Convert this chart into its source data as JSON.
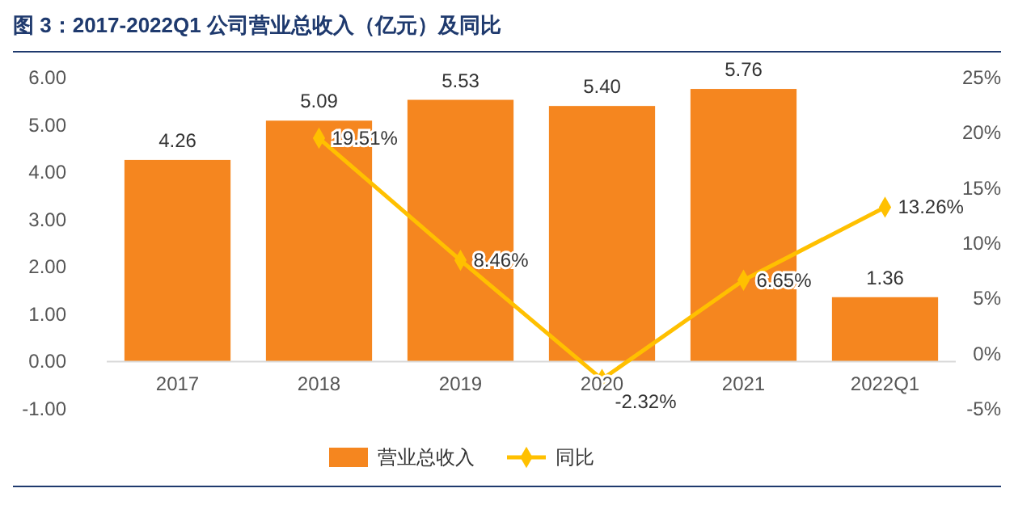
{
  "chart_data": {
    "type": "bar",
    "title": "图 3：2017-2022Q1 公司营业总收入（亿元）及同比",
    "categories": [
      "2017",
      "2018",
      "2019",
      "2020",
      "2021",
      "2022Q1"
    ],
    "series": [
      {
        "name": "营业总收入",
        "color": "#f5861f",
        "values": [
          4.26,
          5.09,
          5.53,
          5.4,
          5.76,
          1.36
        ],
        "value_labels": [
          "4.26",
          "5.09",
          "5.53",
          "5.40",
          "5.76",
          "1.36"
        ]
      },
      {
        "name": "同比",
        "type": "line",
        "axis": "y2",
        "color": "#ffc000",
        "marker": "diamond",
        "values": [
          null,
          19.51,
          8.46,
          -2.32,
          6.65,
          13.26
        ],
        "value_labels": [
          null,
          "19.51%",
          "8.46%",
          "-2.32%",
          "6.65%",
          "13.26%"
        ]
      }
    ],
    "ylim": [
      -1,
      6
    ],
    "yticks": [
      {
        "value": -1,
        "label": "-1.00"
      },
      {
        "value": 0,
        "label": "0.00"
      },
      {
        "value": 1,
        "label": "1.00"
      },
      {
        "value": 2,
        "label": "2.00"
      },
      {
        "value": 3,
        "label": "3.00"
      },
      {
        "value": 4,
        "label": "4.00"
      },
      {
        "value": 5,
        "label": "5.00"
      },
      {
        "value": 6,
        "label": "6.00"
      }
    ],
    "y2lim": [
      -5,
      25
    ],
    "y2ticks": [
      {
        "value": -5,
        "label": "-5%"
      },
      {
        "value": 0,
        "label": "0%"
      },
      {
        "value": 5,
        "label": "5%"
      },
      {
        "value": 10,
        "label": "10%"
      },
      {
        "value": 15,
        "label": "15%"
      },
      {
        "value": 20,
        "label": "20%"
      },
      {
        "value": 25,
        "label": "25%"
      }
    ],
    "legend": "bottom",
    "grid": false
  }
}
